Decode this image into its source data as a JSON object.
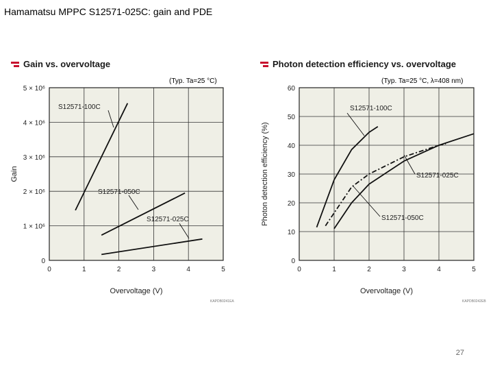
{
  "slide": {
    "title": "Hamamatsu MPPC S12571-025C: gain and PDE",
    "page_number": "27"
  },
  "chart_data": [
    {
      "type": "line",
      "title": "Gain vs. overvoltage",
      "condition": "(Typ. Ta=25 °C)",
      "xlabel": "Overvoltage (V)",
      "ylabel": "Gain",
      "xlim": [
        0,
        5
      ],
      "ylim": [
        0,
        5000000
      ],
      "x_ticks": [
        0,
        1,
        2,
        3,
        4,
        5
      ],
      "y_ticks": [
        0,
        1000000,
        2000000,
        3000000,
        4000000,
        5000000
      ],
      "y_tick_labels": [
        "0",
        "1 × 10⁶",
        "2 × 10⁶",
        "3 × 10⁶",
        "4 × 10⁶",
        "5 × 10⁶"
      ],
      "grid": true,
      "code": "KAPDB0241EA",
      "series": [
        {
          "name": "S12571-100C",
          "style": "solid",
          "x": [
            0.75,
            2.25
          ],
          "y": [
            1450000,
            4550000
          ]
        },
        {
          "name": "S12571-050C",
          "style": "solid",
          "x": [
            1.5,
            3.9
          ],
          "y": [
            730000,
            1950000
          ]
        },
        {
          "name": "S12571-025C",
          "style": "solid",
          "x": [
            1.5,
            4.4
          ],
          "y": [
            170000,
            620000
          ]
        }
      ]
    },
    {
      "type": "line",
      "title": "Photon detection efficiency vs. overvoltage",
      "condition": "(Typ. Ta=25 °C, λ=408 nm)",
      "xlabel": "Overvoltage (V)",
      "ylabel": "Photon detection efficiency (%)",
      "xlim": [
        0,
        5
      ],
      "ylim": [
        0,
        60
      ],
      "x_ticks": [
        0,
        1,
        2,
        3,
        4,
        5
      ],
      "y_ticks": [
        0,
        10,
        20,
        30,
        40,
        50,
        60
      ],
      "grid": true,
      "code": "KAPDB0242EB",
      "series": [
        {
          "name": "S12571-100C",
          "style": "solid",
          "x": [
            0.5,
            1.0,
            1.5,
            2.0,
            2.25
          ],
          "y": [
            11.5,
            28.0,
            38.5,
            44.5,
            46.5
          ]
        },
        {
          "name": "S12571-025C",
          "style": "dashdot",
          "x": [
            0.75,
            1.5,
            2.0,
            3.0,
            4.0,
            4.2
          ],
          "y": [
            12.0,
            25.5,
            30.0,
            36.0,
            40.0,
            40.5
          ]
        },
        {
          "name": "S12571-050C",
          "style": "solid",
          "x": [
            1.0,
            1.5,
            2.0,
            3.0,
            4.0,
            5.0
          ],
          "y": [
            11.0,
            20.0,
            26.5,
            34.5,
            40.0,
            44.0
          ]
        }
      ]
    }
  ]
}
